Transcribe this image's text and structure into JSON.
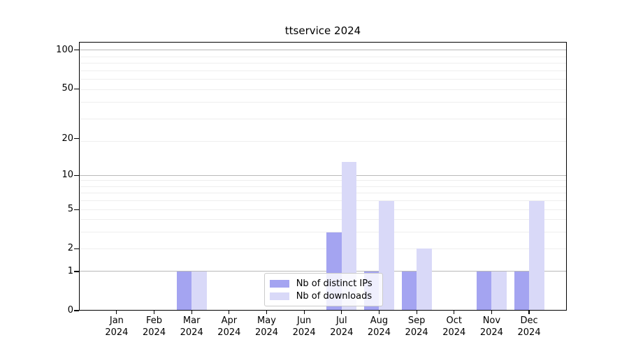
{
  "title": "ttservice 2024",
  "colors": {
    "spine": "#000000",
    "grid_major": "#b9b9b9",
    "grid_minor": "#eeeeee",
    "tick_mark": "#000000",
    "tick_label": "#000000",
    "legend_border": "#cbcbcb"
  },
  "chart_data": {
    "type": "bar",
    "title": "ttservice 2024",
    "xlabel": "",
    "ylabel": "",
    "scale": "log10(1+v)",
    "grid": true,
    "legend_position": "lower center",
    "categories": [
      "Jan",
      "Feb",
      "Mar",
      "Apr",
      "May",
      "Jun",
      "Jul",
      "Aug",
      "Sep",
      "Oct",
      "Nov",
      "Dec"
    ],
    "x_year": "2024",
    "series": [
      {
        "name": "Nb of distinct IPs",
        "color": "#a4a4f1",
        "values": [
          0,
          0,
          1,
          0,
          0,
          0,
          3,
          1,
          1,
          0,
          1,
          1
        ]
      },
      {
        "name": "Nb of downloads",
        "color": "#d9d9f8",
        "values": [
          0,
          0,
          1,
          0,
          0,
          0,
          13,
          6,
          2,
          0,
          1,
          6
        ]
      }
    ],
    "y_ticks": [
      0,
      1,
      2,
      5,
      10,
      20,
      50,
      100
    ],
    "ylim": [
      0,
      116
    ],
    "gridlines": {
      "major": [
        1,
        10,
        100
      ],
      "minor": [
        2,
        3,
        4,
        5,
        6,
        7,
        8,
        9,
        19,
        29,
        39,
        49,
        59,
        69,
        79,
        89
      ]
    }
  }
}
